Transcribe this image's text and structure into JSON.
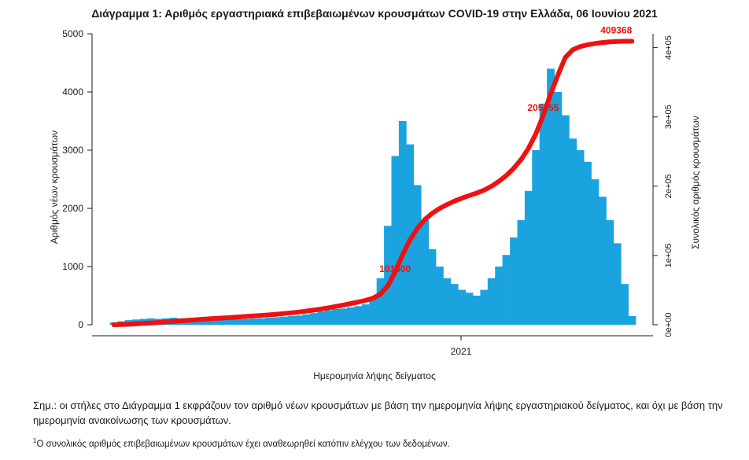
{
  "chart_data": {
    "type": "bar",
    "title": "Διάγραμμα 1: Αριθμός εργαστηριακά επιβεβαιωμένων κρουσμάτων COVID-19 στην Ελλάδα, 06 Ιουνίου 2021",
    "xlabel": "Ημερομηνία λήψης δείγματος",
    "ylabel": "Αριθμός νέων κρουσμάτων",
    "y2label": "Συνολικός αριθμός κρουσμάτων",
    "ylim": [
      0,
      5000
    ],
    "y2lim": [
      0,
      420000
    ],
    "yticks": [
      "0",
      "1000",
      "2000",
      "3000",
      "4000",
      "5000"
    ],
    "y2ticks": [
      "0e+00",
      "1e+05",
      "2e+05",
      "3e+05",
      "4e+05"
    ],
    "xticks": [
      "2021"
    ],
    "series": [
      {
        "kind": "bar",
        "description": "new cases by sample date (approximate weekly profile)",
        "values": [
          40,
          60,
          80,
          90,
          100,
          110,
          100,
          110,
          120,
          110,
          100,
          110,
          105,
          100,
          95,
          100,
          100,
          95,
          100,
          105,
          110,
          120,
          130,
          140,
          150,
          160,
          180,
          200,
          230,
          250,
          270,
          280,
          300,
          320,
          350,
          450,
          800,
          1700,
          2900,
          3500,
          3100,
          2400,
          1800,
          1300,
          1000,
          800,
          700,
          600,
          550,
          500,
          600,
          800,
          1000,
          1200,
          1500,
          1800,
          2300,
          3000,
          3800,
          4400,
          4000,
          3600,
          3200,
          3000,
          2800,
          2500,
          2200,
          1800,
          1400,
          700,
          150
        ]
      },
      {
        "kind": "line",
        "description": "cumulative cases",
        "values": [
          0,
          300,
          700,
          1200,
          1900,
          2600,
          3300,
          4100,
          4900,
          5700,
          6400,
          7200,
          7900,
          8600,
          9300,
          10000,
          10700,
          11400,
          12100,
          12800,
          13500,
          14300,
          15200,
          16200,
          17300,
          18400,
          19700,
          21100,
          22700,
          24500,
          26400,
          28400,
          30500,
          32700,
          35200,
          38400,
          44000,
          55900,
          76200,
          100700,
          122400,
          139200,
          151800,
          160900,
          167900,
          173500,
          178400,
          182600,
          186500,
          190000,
          194200,
          199800,
          206800,
          215200,
          225700,
          238300,
          254400,
          275400,
          302000,
          332800,
          360800,
          386000,
          397000,
          401500,
          404200,
          406000,
          407400,
          408300,
          408900,
          409200,
          409368
        ]
      }
    ],
    "annotations": [
      "409368",
      "205055",
      "101600"
    ]
  },
  "notes": {
    "main": "Σημ.: οι στήλες στο Διάγραμμα 1 εκφράζουν τον αριθμό νέων κρουσμάτων με βάση την ημερομηνία λήψης εργαστηριακού δείγματος, και όχι με βάση την ημερομηνία ανακοίνωσης των κρουσμάτων.",
    "footnote_mark": "1",
    "footnote": "Ο συνολικός αριθμός επιβεβαιωμένων κρουσμάτων έχει αναθεωρηθεί κατόπιν ελέγχου των δεδομένων."
  },
  "colors": {
    "bars": "#1aa3df",
    "cumulative": "#ee1111",
    "axis": "#1a1a1a"
  }
}
